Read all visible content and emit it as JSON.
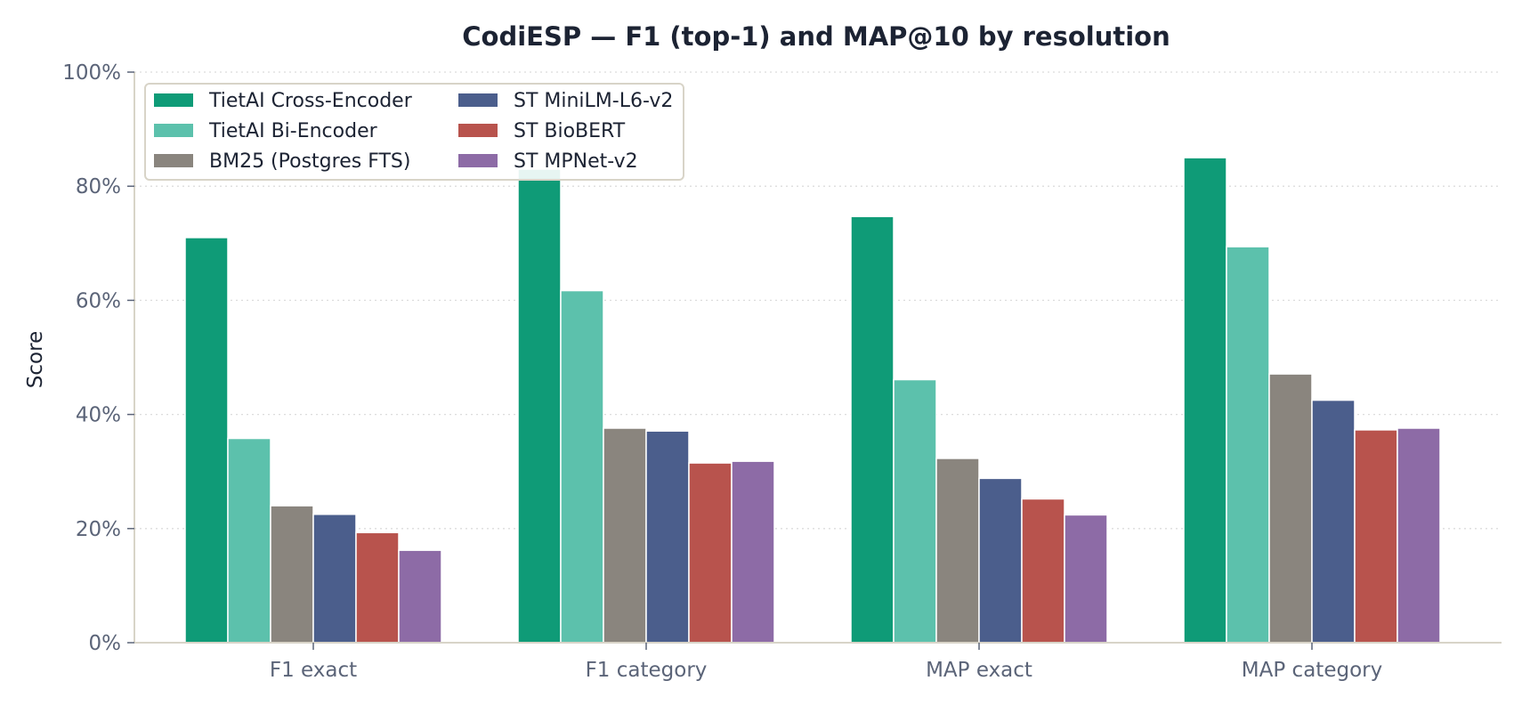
{
  "chart_data": {
    "type": "bar",
    "title": "CodiESP — F1 (top-1) and MAP@10 by resolution",
    "xlabel": "",
    "ylabel": "Score",
    "ylim": [
      0,
      1
    ],
    "yticks": [
      0,
      0.2,
      0.4,
      0.6,
      0.8,
      1.0
    ],
    "ytick_labels": [
      "0%",
      "20%",
      "40%",
      "60%",
      "80%",
      "100%"
    ],
    "categories": [
      "F1 exact",
      "F1 category",
      "MAP exact",
      "MAP category"
    ],
    "grid": "y-dotted",
    "legend_position": "top-left",
    "legend_columns": 2,
    "series": [
      {
        "name": "TietAI Cross-Encoder",
        "color": "#0f9b77",
        "values": [
          0.71,
          0.83,
          0.747,
          0.85
        ]
      },
      {
        "name": "TietAI Bi-Encoder",
        "color": "#5cc1ac",
        "values": [
          0.358,
          0.617,
          0.461,
          0.694
        ]
      },
      {
        "name": "BM25 (Postgres FTS)",
        "color": "#8a857e",
        "values": [
          0.24,
          0.376,
          0.323,
          0.471
        ]
      },
      {
        "name": "ST MiniLM-L6-v2",
        "color": "#4b5e8c",
        "values": [
          0.225,
          0.371,
          0.288,
          0.425
        ]
      },
      {
        "name": "ST BioBERT",
        "color": "#b8534d",
        "values": [
          0.193,
          0.315,
          0.252,
          0.373
        ]
      },
      {
        "name": "ST MPNet-v2",
        "color": "#8d6ba6",
        "values": [
          0.162,
          0.318,
          0.224,
          0.376
        ]
      }
    ]
  }
}
